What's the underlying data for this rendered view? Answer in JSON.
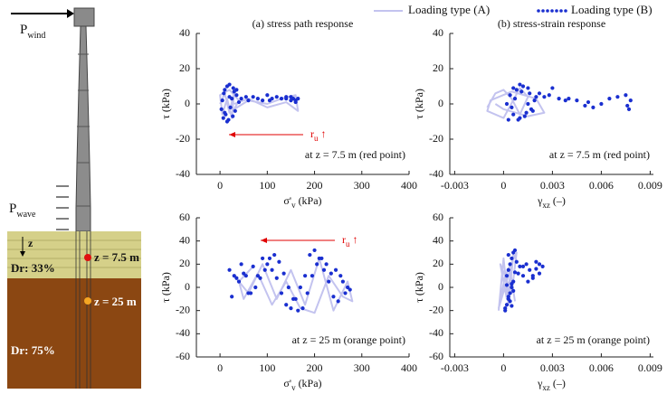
{
  "diagram": {
    "wind": {
      "text": "P",
      "sub": "wind"
    },
    "wave": {
      "text": "P",
      "sub": "wave"
    },
    "depth": "z",
    "point1": "z = 7.5 m",
    "point2": "z = 25 m",
    "layer1": "Dr: 33%",
    "layer2": "Dr: 75%"
  },
  "chart_data": [
    {
      "type": "scatter",
      "title": "(a) stress path response",
      "xlabel": {
        "text": "σ'",
        "sub": "v",
        "rest": " (kPa)"
      },
      "ylabel": "τ (kPa)",
      "xlim": [
        -50,
        400
      ],
      "ylim": [
        -40,
        40
      ],
      "xticks": [
        0,
        100,
        200,
        300,
        400
      ],
      "yticks": [
        -40,
        -20,
        0,
        20,
        40
      ],
      "series": [
        {
          "name": "Loading type (A)",
          "color": "#c3c3ef",
          "style": "line",
          "x": [
            0,
            10,
            20,
            30,
            25,
            15,
            5,
            0,
            20,
            40,
            30,
            60,
            100,
            130,
            160,
            165,
            140,
            100,
            60,
            30
          ],
          "y": [
            0,
            6,
            -5,
            7,
            -8,
            3,
            -6,
            5,
            8,
            2,
            -3,
            2,
            0,
            3,
            5,
            -4,
            1,
            -2,
            3,
            0
          ]
        },
        {
          "name": "Loading type (B)",
          "color": "#1a2fd0",
          "style": "dots",
          "x": [
            5,
            8,
            3,
            10,
            15,
            20,
            12,
            7,
            25,
            30,
            22,
            18,
            28,
            35,
            40,
            32,
            27,
            45,
            55,
            60,
            70,
            80,
            90,
            100,
            105,
            110,
            120,
            130,
            140,
            150,
            155,
            160,
            165,
            160,
            150,
            140,
            35,
            20,
            15,
            10
          ],
          "y": [
            2,
            6,
            -3,
            8,
            10,
            4,
            -6,
            -8,
            3,
            7,
            -2,
            -9,
            9,
            5,
            1,
            -4,
            -7,
            3,
            4,
            2,
            4,
            3,
            2,
            5,
            2,
            3,
            4,
            3,
            4,
            4,
            3,
            2,
            3,
            1,
            2,
            3,
            8,
            11,
            -10,
            -5
          ]
        }
      ],
      "annotations": [
        {
          "text": "r",
          "sub": "u",
          "rest": " ↑",
          "color": "#e00000"
        },
        {
          "text": "at z = 7.5 m (red point)"
        }
      ]
    },
    {
      "type": "scatter",
      "title": "(b) stress-strain response",
      "xlabel": {
        "text": "γ",
        "sub": "xz",
        "rest": " (–)"
      },
      "ylabel": "τ (kPa)",
      "xlim": [
        -0.0033,
        0.0092
      ],
      "ylim": [
        -40,
        40
      ],
      "xticks": [
        -0.003,
        0,
        0.003,
        0.006,
        0.009
      ],
      "yticks": [
        -40,
        -20,
        0,
        20,
        40
      ],
      "series": [
        {
          "color": "#c3c3ef",
          "style": "line",
          "x": [
            -0.001,
            -0.0005,
            0,
            0.0005,
            0.001,
            0.0015,
            0.001,
            0,
            -0.001,
            -0.0008,
            0.0005,
            0.002,
            0.0025,
            0.0015,
            0,
            -0.0005
          ],
          "y": [
            -2,
            6,
            8,
            3,
            -6,
            4,
            9,
            -8,
            -4,
            2,
            7,
            3,
            -5,
            -7,
            -3,
            0
          ]
        },
        {
          "color": "#1a2fd0",
          "style": "dots",
          "x": [
            0.0002,
            0.0004,
            0.0006,
            0.0008,
            0.001,
            0.0012,
            0.0014,
            0.0016,
            0.0018,
            0.002,
            0.0005,
            0.0007,
            0.0009,
            0.0011,
            0.0013,
            0.0015,
            0.0017,
            0.0019,
            0.0022,
            0.0025,
            0.0028,
            0.003,
            0.0034,
            0.0038,
            0.004,
            0.0045,
            0.005,
            0.0052,
            0.0055,
            0.006,
            0.0065,
            0.007,
            0.0075,
            0.0078,
            0.0077,
            0.0076,
            0.0003,
            0.0006,
            0.001,
            0.0015
          ],
          "y": [
            0,
            5,
            -6,
            8,
            -8,
            10,
            -5,
            6,
            -4,
            4,
            -2,
            3,
            -9,
            7,
            -7,
            9,
            -3,
            2,
            6,
            4,
            5,
            9,
            3,
            2,
            3,
            2,
            -1,
            1,
            -2,
            0,
            3,
            4,
            5,
            2,
            -3,
            -1,
            -9,
            9,
            11,
            0
          ]
        }
      ],
      "annotations": [
        {
          "text": "at z = 7.5 m (red point)"
        }
      ]
    },
    {
      "type": "scatter",
      "xlabel": {
        "text": "σ'",
        "sub": "v",
        "rest": " (kPa)"
      },
      "ylabel": "τ (kPa)",
      "xlim": [
        -50,
        400
      ],
      "ylim": [
        -60,
        60
      ],
      "xticks": [
        0,
        100,
        200,
        300,
        400
      ],
      "yticks": [
        -60,
        -40,
        -20,
        0,
        20,
        40,
        60
      ],
      "series": [
        {
          "color": "#c3c3ef",
          "style": "line",
          "x": [
            30,
            60,
            90,
            120,
            150,
            180,
            210,
            240,
            270,
            280,
            260,
            230,
            200,
            170,
            140,
            110,
            80,
            50,
            40,
            70
          ],
          "y": [
            10,
            -5,
            20,
            -10,
            15,
            -15,
            25,
            -20,
            5,
            -12,
            -8,
            10,
            -22,
            -18,
            5,
            -15,
            12,
            -10,
            5,
            18
          ]
        },
        {
          "color": "#1a2fd0",
          "style": "dots",
          "x": [
            20,
            30,
            40,
            50,
            60,
            70,
            80,
            90,
            100,
            110,
            120,
            130,
            140,
            150,
            160,
            170,
            180,
            190,
            200,
            210,
            220,
            230,
            240,
            250,
            260,
            270,
            275,
            265,
            255,
            245,
            235,
            225,
            215,
            205,
            195,
            185,
            175,
            165,
            155,
            145,
            135,
            125,
            115,
            105,
            95,
            85,
            75,
            65,
            55,
            45,
            35,
            25
          ],
          "y": [
            15,
            10,
            5,
            12,
            -5,
            18,
            10,
            25,
            20,
            15,
            8,
            -5,
            -15,
            -18,
            -10,
            0,
            10,
            28,
            32,
            25,
            15,
            5,
            -8,
            -12,
            5,
            0,
            -2,
            -5,
            10,
            15,
            12,
            20,
            25,
            20,
            10,
            -5,
            -18,
            -20,
            -10,
            0,
            12,
            22,
            28,
            25,
            15,
            8,
            0,
            -5,
            10,
            20,
            8,
            -8
          ]
        }
      ],
      "annotations": [
        {
          "text": "r",
          "sub": "u",
          "rest": " ↑",
          "color": "#e00000"
        },
        {
          "text": "at z = 25 m (orange point)"
        }
      ]
    },
    {
      "type": "scatter",
      "xlabel": {
        "text": "γ",
        "sub": "xz",
        "rest": " (–)"
      },
      "ylabel": "τ (kPa)",
      "xlim": [
        -0.0033,
        0.0092
      ],
      "ylim": [
        -60,
        60
      ],
      "xticks": [
        -0.003,
        0,
        0.003,
        0.006,
        0.009
      ],
      "yticks": [
        -60,
        -40,
        -20,
        0,
        20,
        40,
        60
      ],
      "series": [
        {
          "color": "#c3c3ef",
          "style": "line",
          "x": [
            -0.0003,
            0,
            0.0003,
            0.0006,
            0.0002,
            -0.0002,
            0.0005,
            0.0008,
            0.0001,
            -0.0003,
            0.0004,
            0.0007
          ],
          "y": [
            -20,
            25,
            -15,
            28,
            -10,
            20,
            -5,
            30,
            10,
            -18,
            15,
            -12
          ]
        },
        {
          "color": "#1a2fd0",
          "style": "dots",
          "x": [
            0.0001,
            0.0002,
            0.0003,
            0.0004,
            0.0005,
            0.0006,
            0.0002,
            0.0003,
            0.0004,
            0.0005,
            0.0006,
            0.0007,
            0.0001,
            0.0003,
            0.0005,
            0.0007,
            0.0008,
            0.001,
            0.0012,
            0.0014,
            0.0016,
            0.0018,
            0.002,
            0.0022,
            0.0024,
            0.0022,
            0.002,
            0.0018,
            0.0015,
            0.0012,
            0.0009,
            0.0006,
            0.0004,
            0.0002,
            0.0003,
            0.0005
          ],
          "y": [
            -20,
            -15,
            -10,
            -5,
            0,
            5,
            10,
            15,
            20,
            25,
            30,
            32,
            -18,
            -8,
            3,
            13,
            22,
            18,
            10,
            20,
            15,
            8,
            16,
            12,
            18,
            20,
            22,
            10,
            5,
            18,
            12,
            -3,
            -12,
            2,
            28,
            -16
          ]
        }
      ],
      "annotations": [
        {
          "text": "at z = 25 m (orange point)"
        }
      ]
    }
  ]
}
